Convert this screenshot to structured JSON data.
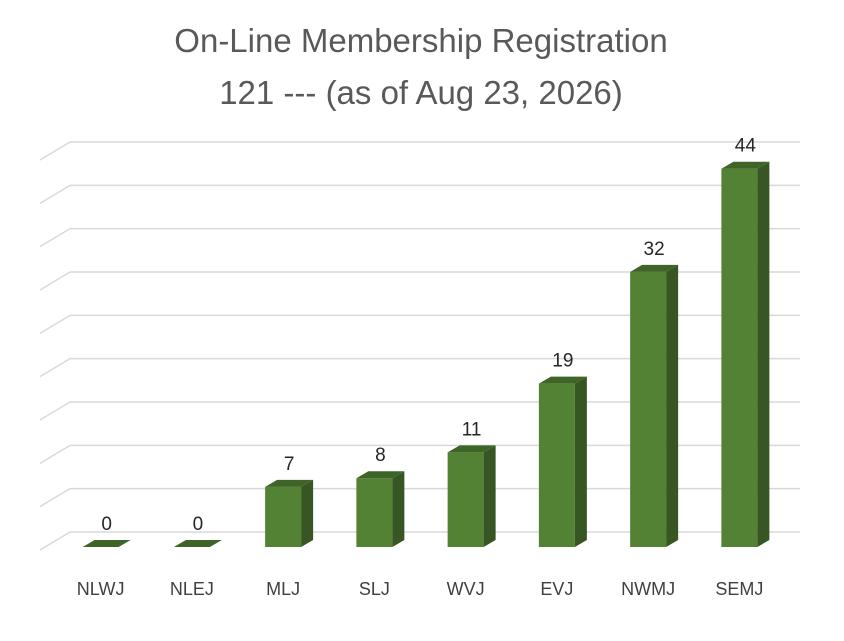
{
  "chart_data": {
    "type": "bar",
    "title": "On-Line Membership Registration",
    "subtitle": "121 --- (as of Aug 23, 2026)",
    "categories": [
      "NLWJ",
      "NLEJ",
      "MLJ",
      "SLJ",
      "WVJ",
      "EVJ",
      "NWMJ",
      "SEMJ"
    ],
    "values": [
      0,
      0,
      7,
      8,
      11,
      19,
      32,
      44
    ],
    "data_labels": [
      "0",
      "0",
      "7",
      "8",
      "11",
      "19",
      "32",
      "44"
    ],
    "ylim": [
      0,
      44
    ],
    "grid": true,
    "legend": "none",
    "three_d": true,
    "colors": {
      "bar_front": "#548235",
      "bar_side": "#375623",
      "bar_top": "#3f6428",
      "gridline": "#d9d9d9",
      "title": "#595959",
      "label": "#262626",
      "tick": "#404040"
    }
  }
}
